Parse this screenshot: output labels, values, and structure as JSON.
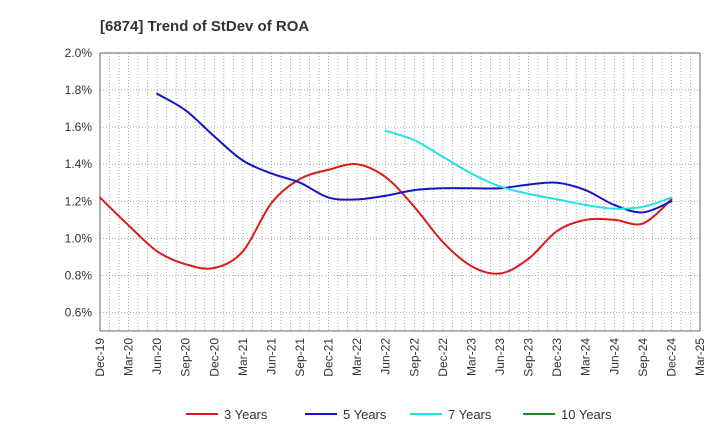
{
  "chart_data": {
    "type": "line",
    "title": "[6874]  Trend of StDev of ROA",
    "y_tick_labels": [
      "0.6%",
      "0.8%",
      "1.0%",
      "1.2%",
      "1.4%",
      "1.6%",
      "1.8%",
      "2.0%"
    ],
    "y_ticks": [
      0.6,
      0.8,
      1.0,
      1.2,
      1.4,
      1.6,
      1.8,
      2.0
    ],
    "ylim": [
      0.5,
      2.0
    ],
    "x_tick_labels": [
      "Dec-19",
      "Mar-20",
      "Jun-20",
      "Sep-20",
      "Dec-20",
      "Mar-21",
      "Jun-21",
      "Sep-21",
      "Dec-21",
      "Mar-22",
      "Jun-22",
      "Sep-22",
      "Dec-22",
      "Mar-23",
      "Jun-23",
      "Sep-23",
      "Dec-23",
      "Mar-24",
      "Jun-24",
      "Sep-24",
      "Dec-24",
      "Mar-25"
    ],
    "grid": true,
    "legend_position": "bottom",
    "series": [
      {
        "name": "3 Years",
        "color": "#dd1a1a",
        "points": [
          [
            "Dec-19",
            1.22
          ],
          [
            "Mar-20",
            1.07
          ],
          [
            "Jun-20",
            0.93
          ],
          [
            "Sep-20",
            0.86
          ],
          [
            "Dec-20",
            0.84
          ],
          [
            "Mar-21",
            0.93
          ],
          [
            "Jun-21",
            1.19
          ],
          [
            "Sep-21",
            1.32
          ],
          [
            "Dec-21",
            1.37
          ],
          [
            "Mar-22",
            1.4
          ],
          [
            "Jun-22",
            1.33
          ],
          [
            "Sep-22",
            1.17
          ],
          [
            "Dec-22",
            0.98
          ],
          [
            "Mar-23",
            0.85
          ],
          [
            "Jun-23",
            0.81
          ],
          [
            "Sep-23",
            0.89
          ],
          [
            "Dec-23",
            1.04
          ],
          [
            "Mar-24",
            1.1
          ],
          [
            "Jun-24",
            1.1
          ],
          [
            "Sep-24",
            1.08
          ],
          [
            "Dec-24",
            1.21
          ]
        ]
      },
      {
        "name": "5 Years",
        "color": "#1515c4",
        "points": [
          [
            "Jun-20",
            1.78
          ],
          [
            "Sep-20",
            1.69
          ],
          [
            "Dec-20",
            1.55
          ],
          [
            "Mar-21",
            1.42
          ],
          [
            "Jun-21",
            1.35
          ],
          [
            "Sep-21",
            1.3
          ],
          [
            "Dec-21",
            1.22
          ],
          [
            "Mar-22",
            1.21
          ],
          [
            "Jun-22",
            1.23
          ],
          [
            "Sep-22",
            1.26
          ],
          [
            "Dec-22",
            1.27
          ],
          [
            "Mar-23",
            1.27
          ],
          [
            "Jun-23",
            1.27
          ],
          [
            "Sep-23",
            1.29
          ],
          [
            "Dec-23",
            1.3
          ],
          [
            "Mar-24",
            1.26
          ],
          [
            "Jun-24",
            1.18
          ],
          [
            "Sep-24",
            1.14
          ],
          [
            "Dec-24",
            1.2
          ]
        ]
      },
      {
        "name": "7 Years",
        "color": "#22e2e2",
        "points": [
          [
            "Jun-22",
            1.58
          ],
          [
            "Sep-22",
            1.53
          ],
          [
            "Dec-22",
            1.44
          ],
          [
            "Mar-23",
            1.35
          ],
          [
            "Jun-23",
            1.28
          ],
          [
            "Sep-23",
            1.24
          ],
          [
            "Dec-23",
            1.21
          ],
          [
            "Mar-24",
            1.18
          ],
          [
            "Jun-24",
            1.16
          ],
          [
            "Sep-24",
            1.17
          ],
          [
            "Dec-24",
            1.22
          ]
        ]
      },
      {
        "name": "10 Years",
        "color": "#1a8a1a",
        "points": []
      }
    ]
  }
}
